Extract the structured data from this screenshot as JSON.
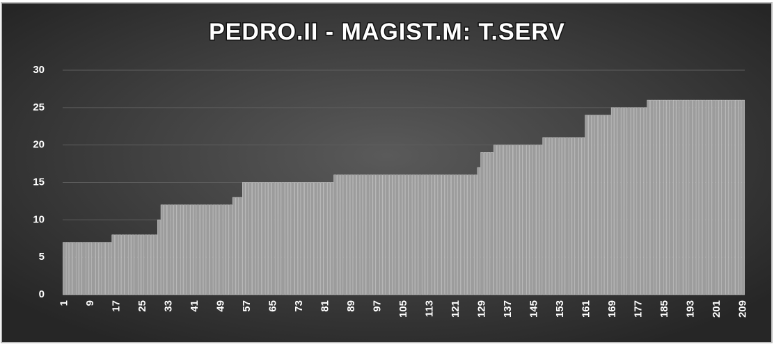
{
  "chart_data": {
    "type": "bar",
    "title": "PEDRO.II  - MAGIST.M:  T.SERV",
    "categories": [
      "1",
      null,
      null,
      null,
      null,
      null,
      null,
      null,
      "9",
      null,
      null,
      null,
      null,
      null,
      null,
      null,
      "17",
      null,
      null,
      null,
      null,
      null,
      null,
      null,
      "25",
      null,
      null,
      null,
      null,
      null,
      null,
      null,
      "33",
      null,
      null,
      null,
      null,
      null,
      null,
      null,
      "41",
      null,
      null,
      null,
      null,
      null,
      null,
      null,
      "49",
      null,
      null,
      null,
      null,
      null,
      null,
      null,
      "57",
      null,
      null,
      null,
      null,
      null,
      null,
      null,
      "65",
      null,
      null,
      null,
      null,
      null,
      null,
      null,
      "73",
      null,
      null,
      null,
      null,
      null,
      null,
      null,
      "81",
      null,
      null,
      null,
      null,
      null,
      null,
      null,
      "89",
      null,
      null,
      null,
      null,
      null,
      null,
      null,
      "97",
      null,
      null,
      null,
      null,
      null,
      null,
      null,
      "105",
      null,
      null,
      null,
      null,
      null,
      null,
      null,
      "113",
      null,
      null,
      null,
      null,
      null,
      null,
      null,
      "121",
      null,
      null,
      null,
      null,
      null,
      null,
      null,
      "129",
      null,
      null,
      null,
      null,
      null,
      null,
      null,
      "137",
      null,
      null,
      null,
      null,
      null,
      null,
      null,
      "145",
      null,
      null,
      null,
      null,
      null,
      null,
      null,
      "153",
      null,
      null,
      null,
      null,
      null,
      null,
      null,
      "161",
      null,
      null,
      null,
      null,
      null,
      null,
      null,
      "169",
      null,
      null,
      null,
      null,
      null,
      null,
      null,
      "177",
      null,
      null,
      null,
      null,
      null,
      null,
      null,
      "185",
      null,
      null,
      null,
      null,
      null,
      null,
      null,
      "193",
      null,
      null,
      null,
      null,
      null,
      null,
      null,
      "201",
      null,
      null,
      null,
      null,
      null,
      null,
      null,
      "209"
    ],
    "values": [
      7,
      7,
      7,
      7,
      7,
      7,
      7,
      7,
      7,
      7,
      7,
      7,
      7,
      7,
      7,
      8,
      8,
      8,
      8,
      8,
      8,
      8,
      8,
      8,
      8,
      8,
      8,
      8,
      8,
      10,
      12,
      12,
      12,
      12,
      12,
      12,
      12,
      12,
      12,
      12,
      12,
      12,
      12,
      12,
      12,
      12,
      12,
      12,
      12,
      12,
      12,
      12,
      13,
      13,
      13,
      15,
      15,
      15,
      15,
      15,
      15,
      15,
      15,
      15,
      15,
      15,
      15,
      15,
      15,
      15,
      15,
      15,
      15,
      15,
      15,
      15,
      15,
      15,
      15,
      15,
      15,
      15,
      15,
      16,
      16,
      16,
      16,
      16,
      16,
      16,
      16,
      16,
      16,
      16,
      16,
      16,
      16,
      16,
      16,
      16,
      16,
      16,
      16,
      16,
      16,
      16,
      16,
      16,
      16,
      16,
      16,
      16,
      16,
      16,
      16,
      16,
      16,
      16,
      16,
      16,
      16,
      16,
      16,
      16,
      16,
      16,
      16,
      17,
      19,
      19,
      19,
      19,
      20,
      20,
      20,
      20,
      20,
      20,
      20,
      20,
      20,
      20,
      20,
      20,
      20,
      20,
      20,
      21,
      21,
      21,
      21,
      21,
      21,
      21,
      21,
      21,
      21,
      21,
      21,
      21,
      24,
      24,
      24,
      24,
      24,
      24,
      24,
      24,
      25,
      25,
      25,
      25,
      25,
      25,
      25,
      25,
      25,
      25,
      25,
      26,
      26,
      26,
      26,
      26,
      26,
      26,
      26,
      26,
      26,
      26,
      26,
      26,
      26,
      26,
      26,
      26,
      26,
      26,
      26,
      26,
      26,
      26,
      26,
      26,
      26,
      26,
      26,
      26,
      26
    ],
    "color": "#9c9c9c",
    "ylim": [
      0,
      30
    ],
    "yticks": [
      0,
      5,
      10,
      15,
      20,
      25,
      30
    ],
    "grid": true
  }
}
